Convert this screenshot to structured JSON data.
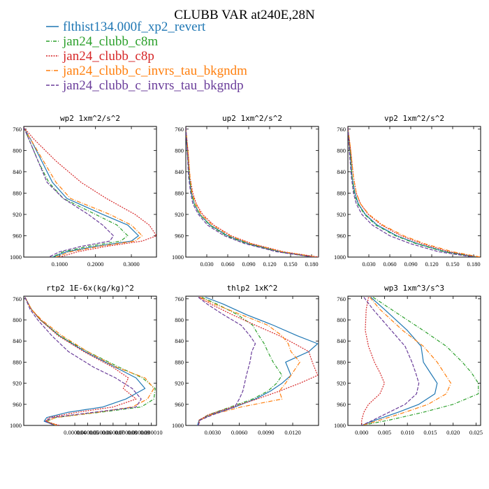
{
  "title": "CLUBB VAR at240E,28N",
  "legend": [
    {
      "label": "flthist134.000f_xp2_revert",
      "color": "#1f77b4",
      "dash": ""
    },
    {
      "label": "jan24_clubb_c8m",
      "color": "#2ca02c",
      "dash": "5,2,1,2"
    },
    {
      "label": "jan24_clubb_c8p",
      "color": "#d62728",
      "dash": "2,1.5"
    },
    {
      "label": "jan24_clubb_c_invrs_tau_bkgndm",
      "color": "#ff7f0e",
      "dash": "6,2,1,2"
    },
    {
      "label": "jan24_clubb_c_invrs_tau_bkgndp",
      "color": "#6a3d9a",
      "dash": "5,2"
    }
  ],
  "chart_data": [
    {
      "type": "line",
      "title": "wp2  1xm^2/s^2",
      "xlim": [
        0,
        0.37
      ],
      "ylim": [
        1000,
        755
      ],
      "xticks": [
        0.1,
        0.2,
        0.3
      ],
      "xticklabels": [
        "0.1000",
        "0.2000",
        "0.3000"
      ],
      "yticks": [
        760,
        800,
        840,
        880,
        920,
        960,
        1000
      ],
      "yticklabels": [
        "760",
        "800",
        "840",
        "880",
        "920",
        "960",
        "1000"
      ],
      "y": [
        757,
        780,
        820,
        860,
        890,
        920,
        940,
        960,
        970,
        980,
        990,
        1000
      ],
      "series": [
        {
          "values": [
            0.0,
            0.02,
            0.05,
            0.08,
            0.12,
            0.22,
            0.29,
            0.32,
            0.3,
            0.2,
            0.12,
            0.08
          ]
        },
        {
          "values": [
            0.0,
            0.015,
            0.04,
            0.07,
            0.11,
            0.2,
            0.26,
            0.29,
            0.27,
            0.18,
            0.11,
            0.08
          ]
        },
        {
          "values": [
            0.0,
            0.03,
            0.09,
            0.16,
            0.23,
            0.31,
            0.35,
            0.37,
            0.33,
            0.23,
            0.15,
            0.1
          ]
        },
        {
          "values": [
            0.0,
            0.02,
            0.055,
            0.09,
            0.13,
            0.24,
            0.3,
            0.33,
            0.31,
            0.21,
            0.13,
            0.09
          ]
        },
        {
          "values": [
            0.0,
            0.015,
            0.04,
            0.065,
            0.11,
            0.18,
            0.22,
            0.25,
            0.24,
            0.16,
            0.1,
            0.07
          ]
        }
      ]
    },
    {
      "type": "line",
      "title": "up2  1xm^2/s^2",
      "xlim": [
        0,
        0.19
      ],
      "ylim": [
        1000,
        755
      ],
      "xticks": [
        0.03,
        0.06,
        0.09,
        0.12,
        0.15,
        0.18
      ],
      "xticklabels": [
        "0.030",
        "0.060",
        "0.090",
        "0.120",
        "0.150",
        "0.180"
      ],
      "yticks": [
        760,
        800,
        840,
        880,
        920,
        960,
        1000
      ],
      "yticklabels": [
        "760",
        "800",
        "840",
        "880",
        "920",
        "960",
        "1000"
      ],
      "y": [
        757,
        800,
        850,
        880,
        900,
        920,
        940,
        960,
        975,
        990,
        1000
      ],
      "series": [
        {
          "values": [
            0.0,
            0.002,
            0.005,
            0.008,
            0.012,
            0.02,
            0.035,
            0.06,
            0.09,
            0.135,
            0.185
          ]
        },
        {
          "values": [
            0.0,
            0.002,
            0.005,
            0.008,
            0.012,
            0.02,
            0.034,
            0.058,
            0.088,
            0.132,
            0.183
          ]
        },
        {
          "values": [
            0.0,
            0.003,
            0.006,
            0.01,
            0.015,
            0.024,
            0.04,
            0.065,
            0.095,
            0.14,
            0.19
          ]
        },
        {
          "values": [
            0.0,
            0.003,
            0.006,
            0.009,
            0.014,
            0.022,
            0.038,
            0.063,
            0.093,
            0.138,
            0.188
          ]
        },
        {
          "values": [
            0.0,
            0.002,
            0.004,
            0.007,
            0.01,
            0.018,
            0.031,
            0.055,
            0.085,
            0.13,
            0.182
          ]
        }
      ]
    },
    {
      "type": "line",
      "title": "vp2  1xm^2/s^2",
      "xlim": [
        0,
        0.19
      ],
      "ylim": [
        1000,
        755
      ],
      "xticks": [
        0.03,
        0.06,
        0.09,
        0.12,
        0.15,
        0.18
      ],
      "xticklabels": [
        "0.030",
        "0.060",
        "0.090",
        "0.120",
        "0.150",
        "0.180"
      ],
      "yticks": [
        760,
        800,
        840,
        880,
        920,
        960,
        1000
      ],
      "yticklabels": [
        "760",
        "800",
        "840",
        "880",
        "920",
        "960",
        "1000"
      ],
      "y": [
        757,
        800,
        850,
        880,
        900,
        920,
        940,
        960,
        975,
        990,
        1000
      ],
      "series": [
        {
          "values": [
            0.0,
            0.003,
            0.006,
            0.01,
            0.015,
            0.025,
            0.042,
            0.07,
            0.1,
            0.14,
            0.185
          ]
        },
        {
          "values": [
            0.0,
            0.003,
            0.006,
            0.009,
            0.014,
            0.024,
            0.04,
            0.068,
            0.098,
            0.138,
            0.183
          ]
        },
        {
          "values": [
            0.0,
            0.004,
            0.008,
            0.012,
            0.018,
            0.029,
            0.048,
            0.076,
            0.106,
            0.145,
            0.188
          ]
        },
        {
          "values": [
            0.0,
            0.004,
            0.008,
            0.012,
            0.018,
            0.03,
            0.05,
            0.08,
            0.11,
            0.15,
            0.19
          ]
        },
        {
          "values": [
            0.0,
            0.002,
            0.005,
            0.008,
            0.012,
            0.02,
            0.035,
            0.06,
            0.09,
            0.13,
            0.18
          ]
        }
      ]
    },
    {
      "type": "line",
      "title": "rtp2  1E-6x(kg/kg)^2",
      "xlim": [
        0,
        1.04e-05
      ],
      "ylim": [
        1000,
        755
      ],
      "xticks": [
        4e-06,
        5e-06,
        6e-06,
        7e-06,
        8e-06,
        9e-06,
        1e-05
      ],
      "xticklabels": [
        "0.000004",
        "0.000005",
        "0.000006",
        "0.000007",
        "0.000008",
        "0.000009",
        "0.000010"
      ],
      "yticks": [
        760,
        800,
        840,
        880,
        920,
        960,
        1000
      ],
      "yticklabels": [
        "760",
        "800",
        "840",
        "880",
        "920",
        "960",
        "1000"
      ],
      "y": [
        757,
        780,
        800,
        830,
        860,
        890,
        910,
        930,
        950,
        965,
        975,
        985,
        992,
        1000
      ],
      "series": [
        {
          "values": [
            1e-07,
            6e-07,
            1.3e-06,
            2.8e-06,
            4.8e-06,
            7.2e-06,
            8.8e-06,
            9.5e-06,
            8e-06,
            6.2e-06,
            3.5e-06,
            1.8e-06,
            1.6e-06,
            2.5e-06
          ]
        },
        {
          "values": [
            1e-07,
            6e-07,
            1.3e-06,
            2.8e-06,
            5e-06,
            7.5e-06,
            9.3e-06,
            1.03e-05,
            1.02e-05,
            9.2e-06,
            6e-06,
            2.5e-06,
            1.8e-06,
            2.5e-06
          ]
        },
        {
          "values": [
            1e-07,
            6e-07,
            1.3e-06,
            2.7e-06,
            4.7e-06,
            7e-06,
            8.2e-06,
            7.8e-06,
            8.8e-06,
            7e-06,
            4.2e-06,
            2e-06,
            1.7e-06,
            2.8e-06
          ]
        },
        {
          "values": [
            1e-07,
            6e-07,
            1.4e-06,
            3e-06,
            5e-06,
            7.3e-06,
            9.5e-06,
            1.02e-05,
            9.7e-06,
            8.5e-06,
            5.8e-06,
            2.5e-06,
            1.8e-06,
            2.6e-06
          ]
        },
        {
          "values": [
            1e-07,
            5e-07,
            1.1e-06,
            2.2e-06,
            3.5e-06,
            5.5e-06,
            7.2e-06,
            8.5e-06,
            9.2e-06,
            8.8e-06,
            5.5e-06,
            2.2e-06,
            1.7e-06,
            2.4e-06
          ]
        }
      ]
    },
    {
      "type": "line",
      "title": "thlp2  1xK^2",
      "xlim": [
        0,
        0.0149
      ],
      "ylim": [
        1000,
        755
      ],
      "xticks": [
        0.003,
        0.006,
        0.009,
        0.012
      ],
      "xticklabels": [
        "0.0030",
        "0.0060",
        "0.0090",
        "0.0120"
      ],
      "yticks": [
        760,
        800,
        840,
        880,
        920,
        960,
        1000
      ],
      "yticklabels": [
        "760",
        "800",
        "840",
        "880",
        "920",
        "960",
        "1000"
      ],
      "y": [
        757,
        770,
        790,
        810,
        830,
        845,
        860,
        880,
        905,
        920,
        935,
        950,
        965,
        980,
        990,
        1000
      ],
      "series": [
        {
          "values": [
            0.0022,
            0.0042,
            0.0068,
            0.0098,
            0.0125,
            0.0148,
            0.0138,
            0.0112,
            0.0118,
            0.0108,
            0.0095,
            0.0078,
            0.0055,
            0.0028,
            0.0015,
            0.0013
          ]
        },
        {
          "values": [
            0.0018,
            0.0035,
            0.0058,
            0.0075,
            0.0082,
            0.0088,
            0.0092,
            0.0098,
            0.0108,
            0.0102,
            0.0092,
            0.0075,
            0.005,
            0.0025,
            0.0015,
            0.0014
          ]
        },
        {
          "values": [
            0.0015,
            0.0028,
            0.0052,
            0.0078,
            0.0105,
            0.0122,
            0.0138,
            0.0142,
            0.0148,
            0.0128,
            0.0105,
            0.008,
            0.0052,
            0.0025,
            0.0015,
            0.0014
          ]
        },
        {
          "values": [
            0.0016,
            0.0032,
            0.0062,
            0.0092,
            0.0108,
            0.0115,
            0.0118,
            0.0128,
            0.0118,
            0.0112,
            0.0105,
            0.0108,
            0.0062,
            0.0028,
            0.0016,
            0.0014
          ]
        },
        {
          "values": [
            0.0014,
            0.0024,
            0.0042,
            0.0062,
            0.0072,
            0.0078,
            0.0074,
            0.0072,
            0.0068,
            0.0066,
            0.0064,
            0.006,
            0.0055,
            0.003,
            0.0016,
            0.0014
          ]
        }
      ]
    },
    {
      "type": "line",
      "title": "wp3  1xm^3/s^3",
      "xlim": [
        -0.003,
        0.026
      ],
      "ylim": [
        1000,
        755
      ],
      "xticks": [
        0.0,
        0.005,
        0.01,
        0.015,
        0.02,
        0.025
      ],
      "xticklabels": [
        "0.000",
        "0.005",
        "0.010",
        "0.015",
        "0.020",
        "0.025"
      ],
      "yticks": [
        760,
        800,
        840,
        880,
        920,
        960,
        1000
      ],
      "yticklabels": [
        "760",
        "800",
        "840",
        "880",
        "920",
        "960",
        "1000"
      ],
      "y": [
        757,
        780,
        820,
        850,
        880,
        900,
        920,
        940,
        960,
        975,
        990,
        1000
      ],
      "series": [
        {
          "values": [
            0.002,
            0.005,
            0.01,
            0.013,
            0.0135,
            0.015,
            0.0165,
            0.016,
            0.0125,
            0.008,
            0.003,
            0.0
          ]
        },
        {
          "values": [
            0.0025,
            0.0065,
            0.0135,
            0.0185,
            0.022,
            0.024,
            0.0255,
            0.0255,
            0.02,
            0.0135,
            0.006,
            0.0
          ]
        },
        {
          "values": [
            0.0015,
            0.001,
            0.0008,
            0.0015,
            0.0028,
            0.004,
            0.005,
            0.004,
            0.0015,
            0.0005,
            0.0,
            0.0
          ]
        },
        {
          "values": [
            0.0018,
            0.004,
            0.009,
            0.0135,
            0.0165,
            0.018,
            0.0195,
            0.0185,
            0.0145,
            0.0095,
            0.004,
            0.0
          ]
        },
        {
          "values": [
            0.0005,
            0.0025,
            0.0065,
            0.0095,
            0.011,
            0.0118,
            0.0125,
            0.012,
            0.0095,
            0.006,
            0.0025,
            0.0
          ]
        }
      ]
    }
  ]
}
